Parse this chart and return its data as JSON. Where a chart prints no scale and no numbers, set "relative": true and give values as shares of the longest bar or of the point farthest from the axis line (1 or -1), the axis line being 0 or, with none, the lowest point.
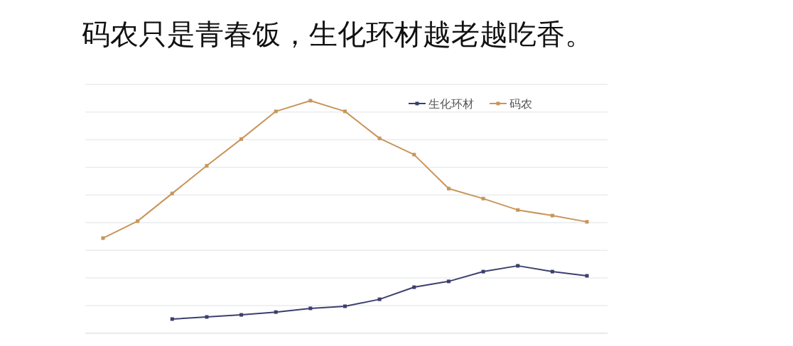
{
  "chart_data": {
    "type": "line",
    "title": "码农只是青春饭，生化环材越老越吃香。",
    "relative": true,
    "categories": [
      null,
      null,
      null,
      null,
      null,
      null,
      null,
      null,
      null,
      null,
      null,
      null,
      null,
      null,
      null
    ],
    "series": [
      {
        "name": "生化环材",
        "color": "#3b3f6e",
        "values": [
          null,
          null,
          0.061,
          0.07,
          0.079,
          0.091,
          0.107,
          0.116,
          0.146,
          0.198,
          0.223,
          0.265,
          0.29,
          0.265,
          0.247
        ]
      },
      {
        "name": "码农",
        "color": "#c8955a",
        "values": [
          0.409,
          0.482,
          0.601,
          0.72,
          0.835,
          0.954,
          1,
          0.954,
          0.838,
          0.768,
          0.622,
          0.579,
          0.53,
          0.506,
          0.479
        ]
      }
    ],
    "grid": "y",
    "legend": "top right",
    "marker": "square",
    "line_style": "solid"
  }
}
